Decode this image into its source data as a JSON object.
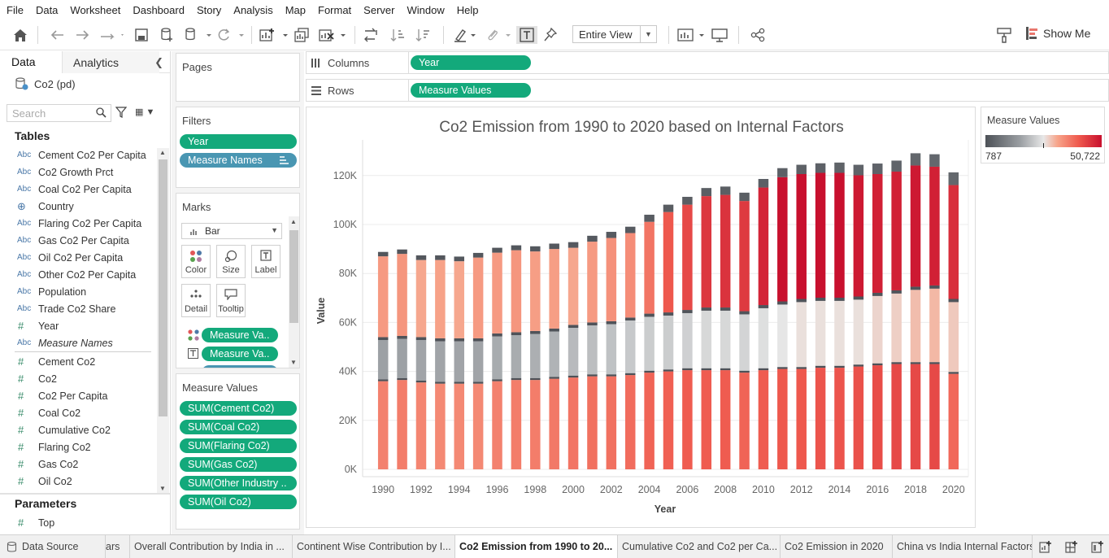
{
  "menu": [
    "File",
    "Data",
    "Worksheet",
    "Dashboard",
    "Story",
    "Analysis",
    "Map",
    "Format",
    "Server",
    "Window",
    "Help"
  ],
  "toolbar": {
    "fit_option": "Entire View",
    "show_me": "Show Me"
  },
  "data_pane": {
    "tabs": [
      "Data",
      "Analytics"
    ],
    "datasource": "Co2 (pd)",
    "search_placeholder": "Search",
    "tables_heading": "Tables",
    "dimensions": [
      {
        "type": "Abc",
        "name": "Cement Co2 Per Capita"
      },
      {
        "type": "Abc",
        "name": "Co2 Growth Prct"
      },
      {
        "type": "Abc",
        "name": "Coal Co2 Per Capita"
      },
      {
        "type": "geo",
        "name": "Country"
      },
      {
        "type": "Abc",
        "name": "Flaring Co2 Per Capita"
      },
      {
        "type": "Abc",
        "name": "Gas Co2 Per Capita"
      },
      {
        "type": "Abc",
        "name": "Oil Co2 Per Capita"
      },
      {
        "type": "Abc",
        "name": "Other Co2 Per Capita"
      },
      {
        "type": "Abc",
        "name": "Population"
      },
      {
        "type": "Abc",
        "name": "Trade Co2 Share"
      },
      {
        "type": "#",
        "name": "Year"
      },
      {
        "type": "Abc",
        "name": "Measure Names"
      }
    ],
    "measures": [
      {
        "type": "#",
        "name": "Cement Co2"
      },
      {
        "type": "#",
        "name": "Co2"
      },
      {
        "type": "#",
        "name": "Co2 Per Capita"
      },
      {
        "type": "#",
        "name": "Coal Co2"
      },
      {
        "type": "#",
        "name": "Cumulative Co2"
      },
      {
        "type": "#",
        "name": "Flaring Co2"
      },
      {
        "type": "#",
        "name": "Gas Co2"
      },
      {
        "type": "#",
        "name": "Oil Co2"
      }
    ],
    "parameters_heading": "Parameters",
    "parameters": [
      {
        "type": "#",
        "name": "Top"
      }
    ]
  },
  "cards": {
    "pages_title": "Pages",
    "filters_title": "Filters",
    "filters": [
      "Year",
      "Measure Names"
    ],
    "marks_title": "Marks",
    "mark_type": "Bar",
    "mark_buttons": [
      "Color",
      "Size",
      "Label",
      "Detail",
      "Tooltip"
    ],
    "mark_pills": [
      "Measure Va..",
      "Measure Va.."
    ],
    "measure_values_title": "Measure Values",
    "measure_values": [
      "SUM(Cement Co2)",
      "SUM(Coal Co2)",
      "SUM(Flaring Co2)",
      "SUM(Gas Co2)",
      "SUM(Other Industry ..",
      "SUM(Oil Co2)"
    ]
  },
  "shelves": {
    "columns_label": "Columns",
    "columns_pill": "Year",
    "rows_label": "Rows",
    "rows_pill": "Measure Values"
  },
  "legend": {
    "title": "Measure Values",
    "min": "787",
    "max": "50,722"
  },
  "tabs": [
    "Data Source",
    "ars",
    "Overall Contribution by India in ...",
    "Continent Wise Contribution by I...",
    "Co2 Emission from 1990 to 20...",
    "Cumulative Co2 and Co2 per Ca...",
    "Co2 Emission in 2020",
    "China vs India Internal Factors"
  ],
  "chart_data": {
    "type": "bar",
    "title": "Co2 Emission from 1990 to 2020 based on Internal Factors",
    "xlabel": "Year",
    "ylabel": "Value",
    "ylim": [
      0,
      125000
    ],
    "y_ticks": [
      "0K",
      "20K",
      "40K",
      "60K",
      "80K",
      "100K",
      "120K"
    ],
    "x_tick_labels": [
      "1990",
      "1992",
      "1994",
      "1996",
      "1998",
      "2000",
      "2002",
      "2004",
      "2006",
      "2008",
      "2010",
      "2012",
      "2014",
      "2016",
      "2018",
      "2020"
    ],
    "categories": [
      1990,
      1991,
      1992,
      1993,
      1994,
      1995,
      1996,
      1997,
      1998,
      1999,
      2000,
      2001,
      2002,
      2003,
      2004,
      2005,
      2006,
      2007,
      2008,
      2009,
      2010,
      2011,
      2012,
      2013,
      2014,
      2015,
      2016,
      2017,
      2018,
      2019,
      2020
    ],
    "series": [
      {
        "values": [
          36000,
          36500,
          35500,
          35000,
          35000,
          35000,
          36000,
          36500,
          36500,
          37000,
          37500,
          38000,
          38000,
          38500,
          39500,
          40000,
          40500,
          40500,
          40500,
          39500,
          40500,
          41000,
          41000,
          41500,
          41500,
          42000,
          42500,
          43000,
          43000,
          43000,
          39000
        ]
      },
      {
        "values": [
          800,
          800,
          800,
          800,
          800,
          800,
          800,
          800,
          800,
          800,
          800,
          800,
          800,
          800,
          800,
          800,
          800,
          800,
          800,
          800,
          800,
          800,
          800,
          800,
          800,
          800,
          800,
          800,
          800,
          800,
          800
        ]
      },
      {
        "values": [
          16000,
          16000,
          16500,
          16500,
          16500,
          16500,
          17500,
          17500,
          18000,
          18500,
          19500,
          20000,
          20500,
          21500,
          22000,
          22000,
          22500,
          23500,
          23500,
          23000,
          24500,
          25500,
          26500,
          26500,
          26500,
          26500,
          27500,
          28000,
          29500,
          30000,
          28500
        ]
      },
      {
        "values": [
          1200,
          1200,
          1200,
          1200,
          1200,
          1200,
          1200,
          1200,
          1200,
          1200,
          1200,
          1200,
          1200,
          1200,
          1300,
          1300,
          1300,
          1300,
          1300,
          1300,
          1300,
          1300,
          1300,
          1300,
          1300,
          1300,
          1300,
          1300,
          1300,
          1300,
          1300
        ]
      },
      {
        "values": [
          33000,
          33500,
          31500,
          32000,
          31500,
          33000,
          33000,
          33500,
          32500,
          32500,
          31500,
          33000,
          34000,
          34500,
          37500,
          41000,
          43000,
          45500,
          46000,
          45000,
          48000,
          50722,
          51000,
          51000,
          51000,
          49500,
          48500,
          48500,
          49500,
          48500,
          46500
        ]
      },
      {
        "values": [
          1800,
          1800,
          1900,
          1900,
          1900,
          1900,
          2000,
          2000,
          2100,
          2200,
          2300,
          2400,
          2500,
          2600,
          2900,
          3000,
          3200,
          3300,
          3400,
          3400,
          3500,
          3700,
          3800,
          3900,
          4200,
          4300,
          4300,
          4500,
          5000,
          5100,
          5200
        ]
      }
    ]
  }
}
